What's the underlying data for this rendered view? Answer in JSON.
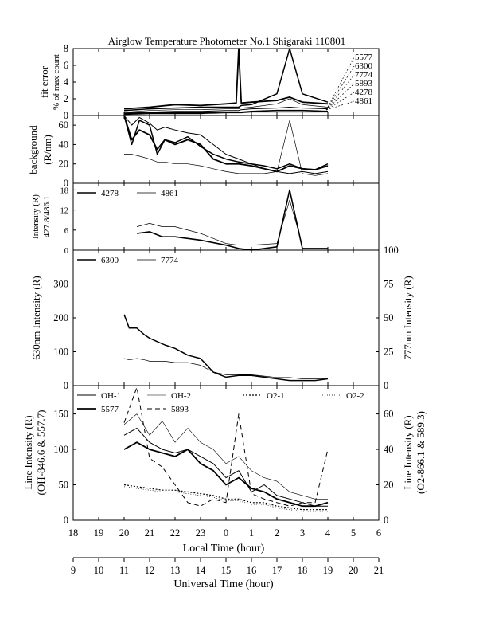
{
  "title": "Airglow Temperature Photometer No.1   Shigaraki   110801",
  "x_axes": {
    "local": {
      "label": "Local Time (hour)",
      "ticks": [
        "18",
        "19",
        "20",
        "21",
        "22",
        "23",
        "0",
        "1",
        "2",
        "3",
        "4",
        "5",
        "6"
      ]
    },
    "universal": {
      "label": "Universal Time (hour)",
      "ticks": [
        "9",
        "10",
        "11",
        "12",
        "13",
        "14",
        "15",
        "16",
        "17",
        "18",
        "19",
        "20",
        "21"
      ]
    }
  },
  "panels": {
    "fit_error": {
      "ylabel1": "fit error",
      "ylabel2": "% of max count",
      "yticks": [
        "0",
        "2",
        "4",
        "6",
        "8"
      ]
    },
    "background": {
      "ylabel1": "background",
      "ylabel2": "(R/nm)",
      "yticks": [
        "0",
        "20",
        "40",
        "60"
      ]
    },
    "intensity_small": {
      "ylabel1": "Intensity (R)",
      "ylabel2": "427.8/486.1",
      "yticks": [
        "0",
        "6",
        "12",
        "18"
      ],
      "legend": [
        "4278",
        "4861"
      ]
    },
    "oxygen": {
      "ylabel_left": "630nm Intensity (R)",
      "ylabel_right": "777nm Intensity (R)",
      "yticks_left": [
        "0",
        "100",
        "200",
        "300"
      ],
      "yticks_right": [
        "0",
        "25",
        "50",
        "75",
        "100"
      ],
      "legend": [
        "6300",
        "7774"
      ]
    },
    "lines": {
      "ylabel_left1": "Line Intensity (R)",
      "ylabel_left2": "(OH-846.6 & 557.7)",
      "ylabel_right1": "Line Intensity (R)",
      "ylabel_right2": "(O2-866.1 & 589.3)",
      "yticks_left": [
        "0",
        "50",
        "100",
        "150"
      ],
      "yticks_right": [
        "0",
        "20",
        "40",
        "60"
      ],
      "legend": [
        "OH-1",
        "OH-2",
        "O2-1",
        "O2-2",
        "5577",
        "5893"
      ]
    }
  },
  "channel_labels": [
    "5577",
    "6300",
    "7774",
    "5893",
    "4278",
    "4861"
  ],
  "chart_data": [
    {
      "type": "line",
      "title": "",
      "ylabel": "fit error % of max count",
      "x_unit": "universal time (hour)",
      "ylim": [
        0,
        8
      ],
      "x": [
        11.0,
        12.0,
        13.0,
        14.0,
        15.0,
        15.4,
        15.5,
        15.6,
        16.0,
        17.0,
        17.5,
        18.0,
        19.0
      ],
      "series": [
        {
          "name": "5577",
          "values": [
            0.8,
            1.0,
            1.3,
            1.2,
            1.4,
            1.5,
            8.0,
            1.5,
            1.6,
            1.8,
            2.2,
            1.6,
            1.4
          ]
        },
        {
          "name": "6300",
          "values": [
            0.6,
            0.8,
            0.9,
            1.0,
            1.0,
            1.0,
            1.0,
            1.2,
            1.3,
            2.6,
            8.0,
            2.6,
            1.6
          ]
        },
        {
          "name": "7774",
          "values": [
            0.4,
            0.6,
            0.7,
            0.7,
            0.8,
            0.8,
            0.8,
            0.9,
            1.0,
            1.4,
            2.0,
            1.3,
            1.0
          ]
        },
        {
          "name": "5893",
          "values": [
            0.3,
            0.4,
            0.5,
            0.5,
            0.6,
            0.6,
            0.6,
            0.7,
            0.8,
            0.9,
            1.0,
            0.9,
            0.8
          ]
        },
        {
          "name": "4278",
          "values": [
            0.2,
            0.3,
            0.3,
            0.3,
            0.4,
            0.4,
            0.4,
            0.4,
            0.5,
            0.6,
            0.6,
            0.6,
            0.5
          ]
        },
        {
          "name": "4861",
          "values": [
            0.1,
            0.2,
            0.2,
            0.2,
            0.3,
            0.3,
            0.3,
            0.3,
            0.4,
            0.4,
            0.4,
            0.4,
            0.4
          ]
        }
      ]
    },
    {
      "type": "line",
      "title": "",
      "ylabel": "background (R/nm)",
      "x_unit": "universal time (hour)",
      "ylim": [
        0,
        70
      ],
      "x": [
        11.0,
        11.3,
        11.6,
        12.0,
        12.3,
        12.6,
        13.0,
        13.5,
        14.0,
        14.5,
        15.0,
        15.5,
        16.0,
        16.5,
        17.0,
        17.5,
        18.0,
        18.5,
        19.0
      ],
      "series": [
        {
          "name": "5577",
          "values": [
            70,
            45,
            55,
            50,
            35,
            45,
            40,
            45,
            40,
            25,
            20,
            20,
            18,
            15,
            12,
            18,
            15,
            14,
            18
          ]
        },
        {
          "name": "6300",
          "values": [
            70,
            40,
            65,
            60,
            30,
            45,
            42,
            48,
            38,
            30,
            25,
            22,
            20,
            18,
            15,
            20,
            15,
            14,
            20
          ]
        },
        {
          "name": "7774",
          "values": [
            30,
            30,
            28,
            25,
            22,
            22,
            20,
            20,
            18,
            15,
            12,
            10,
            10,
            10,
            12,
            65,
            10,
            8,
            10
          ]
        },
        {
          "name": "5893",
          "values": [
            70,
            60,
            68,
            62,
            55,
            58,
            55,
            52,
            50,
            40,
            30,
            25,
            20,
            15,
            12,
            10,
            12,
            10,
            12
          ]
        }
      ]
    },
    {
      "type": "line",
      "title": "",
      "ylabel": "Intensity (R) 427.8/486.1",
      "x_unit": "universal time (hour)",
      "ylim": [
        0,
        20
      ],
      "x": [
        11.5,
        12.0,
        12.5,
        13.0,
        14.0,
        15.0,
        15.5,
        16.0,
        17.0,
        17.5,
        18.0,
        19.0
      ],
      "series": [
        {
          "name": "4278",
          "values": [
            5,
            5.5,
            4,
            4,
            3,
            1.5,
            0.5,
            0,
            1,
            18,
            0.5,
            0.5
          ]
        },
        {
          "name": "4861",
          "values": [
            7,
            8,
            7,
            7,
            5,
            2,
            1.5,
            1.5,
            2,
            15,
            1.5,
            1.5
          ]
        }
      ]
    },
    {
      "type": "line",
      "title": "",
      "ylabel": "630nm Intensity (R)",
      "y2label": "777nm Intensity (R)",
      "x_unit": "universal time (hour)",
      "ylim": [
        0,
        400
      ],
      "y2lim": [
        0,
        100
      ],
      "x": [
        11.0,
        11.2,
        11.5,
        11.8,
        12.0,
        12.3,
        12.6,
        13.0,
        13.5,
        14.0,
        14.5,
        15.0,
        15.5,
        16.0,
        16.5,
        17.0,
        17.5,
        18.0,
        18.5,
        19.0
      ],
      "series": [
        {
          "name": "6300",
          "axis": "left",
          "values": [
            210,
            170,
            170,
            150,
            140,
            130,
            120,
            110,
            90,
            80,
            40,
            25,
            30,
            30,
            25,
            20,
            15,
            15,
            15,
            20
          ]
        },
        {
          "name": "7774",
          "axis": "right",
          "values": [
            20,
            19,
            20,
            19,
            18,
            18,
            18,
            17,
            17,
            15,
            10,
            8,
            8,
            8,
            7,
            6,
            6,
            5,
            5,
            5
          ]
        }
      ]
    },
    {
      "type": "line",
      "title": "",
      "ylabel": "Line Intensity (R) (OH-846.6 & 557.7)",
      "y2label": "Line Intensity (R) (O2-866.1 & 589.3)",
      "x_unit": "universal time (hour)",
      "ylim": [
        0,
        190
      ],
      "y2lim": [
        0,
        76
      ],
      "x": [
        11.0,
        11.5,
        12.0,
        12.5,
        13.0,
        13.5,
        14.0,
        14.5,
        15.0,
        15.5,
        16.0,
        16.5,
        17.0,
        17.5,
        18.0,
        18.5,
        19.0
      ],
      "series": [
        {
          "name": "OH-1",
          "axis": "left",
          "values": [
            120,
            130,
            110,
            100,
            95,
            100,
            90,
            80,
            60,
            70,
            40,
            50,
            35,
            30,
            25,
            20,
            20
          ]
        },
        {
          "name": "OH-2",
          "axis": "left",
          "values": [
            135,
            150,
            120,
            140,
            110,
            130,
            110,
            100,
            80,
            90,
            70,
            60,
            55,
            40,
            35,
            30,
            30
          ]
        },
        {
          "name": "5577",
          "axis": "left",
          "values": [
            100,
            110,
            100,
            95,
            90,
            100,
            80,
            70,
            50,
            60,
            45,
            40,
            30,
            25,
            20,
            20,
            25
          ]
        },
        {
          "name": "O2-1",
          "axis": "right",
          "values": [
            20,
            19,
            18,
            17,
            17,
            16,
            15,
            14,
            12,
            12,
            10,
            10,
            8,
            7,
            6,
            6,
            6
          ]
        },
        {
          "name": "O2-2",
          "axis": "right",
          "values": [
            19,
            18,
            17,
            16,
            16,
            15,
            14,
            13,
            11,
            11,
            9,
            9,
            7,
            6,
            5,
            5,
            5
          ]
        },
        {
          "name": "5893",
          "axis": "right",
          "values": [
            55,
            75,
            35,
            30,
            20,
            10,
            8,
            12,
            10,
            60,
            15,
            12,
            10,
            8,
            10,
            10,
            40
          ]
        }
      ]
    }
  ]
}
